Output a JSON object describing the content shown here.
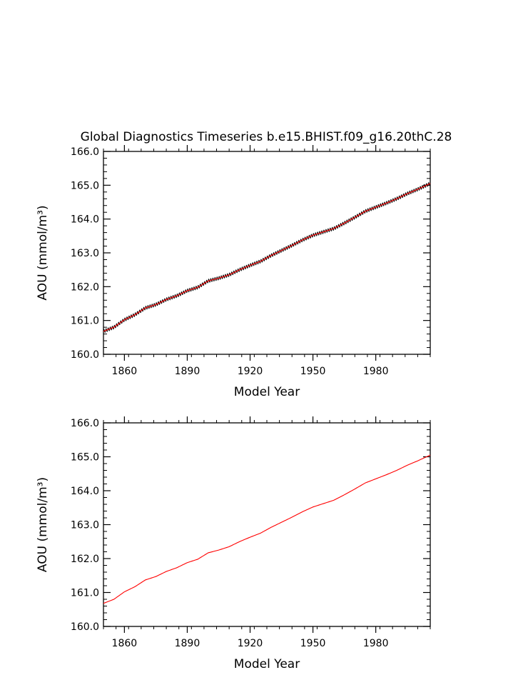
{
  "title": "Global Diagnostics Timeseries b.e15.BHIST.f09_g16.20thC.28",
  "colors": {
    "background": "#ffffff",
    "axes": "#000000",
    "monthly": "#000000",
    "smoothed": "#ff0000"
  },
  "chart_data": [
    {
      "type": "line",
      "title": "Global Diagnostics Timeseries b.e15.BHIST.f09_g16.20thC.28",
      "xlabel": "Model Year",
      "ylabel": "AOU (mmol/m³)",
      "xlim": [
        1850,
        2006
      ],
      "ylim": [
        160.0,
        166.0
      ],
      "xticks": [
        1860,
        1890,
        1920,
        1950,
        1980
      ],
      "xtick_labels": [
        "1860",
        "1890",
        "1920",
        "1950",
        "1980"
      ],
      "yticks": [
        160.0,
        161.0,
        162.0,
        163.0,
        164.0,
        165.0,
        166.0
      ],
      "ytick_labels": [
        "160.0",
        "161.0",
        "162.0",
        "163.0",
        "164.0",
        "165.0",
        "166.0"
      ],
      "grid": false,
      "series": [
        {
          "color": "#000000",
          "style": "monthly, seasonal cycle amplitude ~0.05",
          "x": [
            1850,
            1855,
            1860,
            1865,
            1870,
            1875,
            1880,
            1885,
            1890,
            1895,
            1900,
            1905,
            1910,
            1915,
            1920,
            1925,
            1930,
            1935,
            1940,
            1945,
            1950,
            1955,
            1960,
            1965,
            1970,
            1975,
            1980,
            1985,
            1990,
            1995,
            2000,
            2006
          ],
          "y": [
            160.68,
            160.8,
            161.02,
            161.17,
            161.37,
            161.47,
            161.62,
            161.73,
            161.88,
            161.98,
            162.17,
            162.25,
            162.35,
            162.5,
            162.63,
            162.75,
            162.92,
            163.07,
            163.22,
            163.38,
            163.52,
            163.62,
            163.72,
            163.88,
            164.05,
            164.23,
            164.35,
            164.47,
            164.6,
            164.75,
            164.88,
            165.05
          ]
        },
        {
          "color": "#ff0000",
          "style": "annual mean",
          "x": [
            1850,
            1855,
            1860,
            1865,
            1870,
            1875,
            1880,
            1885,
            1890,
            1895,
            1900,
            1905,
            1910,
            1915,
            1920,
            1925,
            1930,
            1935,
            1940,
            1945,
            1950,
            1955,
            1960,
            1965,
            1970,
            1975,
            1980,
            1985,
            1990,
            1995,
            2000,
            2006
          ],
          "y": [
            160.68,
            160.8,
            161.02,
            161.17,
            161.37,
            161.47,
            161.62,
            161.73,
            161.88,
            161.98,
            162.17,
            162.25,
            162.35,
            162.5,
            162.63,
            162.75,
            162.92,
            163.07,
            163.22,
            163.38,
            163.52,
            163.62,
            163.72,
            163.88,
            164.05,
            164.23,
            164.35,
            164.47,
            164.6,
            164.75,
            164.88,
            165.05
          ]
        }
      ]
    },
    {
      "type": "line",
      "title": "",
      "xlabel": "Model Year",
      "ylabel": "AOU (mmol/m³)",
      "xlim": [
        1850,
        2006
      ],
      "ylim": [
        160.0,
        166.0
      ],
      "xticks": [
        1860,
        1890,
        1920,
        1950,
        1980
      ],
      "xtick_labels": [
        "1860",
        "1890",
        "1920",
        "1950",
        "1980"
      ],
      "yticks": [
        160.0,
        161.0,
        162.0,
        163.0,
        164.0,
        165.0,
        166.0
      ],
      "ytick_labels": [
        "160.0",
        "161.0",
        "162.0",
        "163.0",
        "164.0",
        "165.0",
        "166.0"
      ],
      "grid": false,
      "series": [
        {
          "color": "#ff0000",
          "style": "annual mean",
          "x": [
            1850,
            1855,
            1860,
            1865,
            1870,
            1875,
            1880,
            1885,
            1890,
            1895,
            1900,
            1905,
            1910,
            1915,
            1920,
            1925,
            1930,
            1935,
            1940,
            1945,
            1950,
            1955,
            1960,
            1965,
            1970,
            1975,
            1980,
            1985,
            1990,
            1995,
            2000,
            2006
          ],
          "y": [
            160.68,
            160.8,
            161.02,
            161.17,
            161.37,
            161.47,
            161.62,
            161.73,
            161.88,
            161.98,
            162.17,
            162.25,
            162.35,
            162.5,
            162.63,
            162.75,
            162.92,
            163.07,
            163.22,
            163.38,
            163.52,
            163.62,
            163.72,
            163.88,
            164.05,
            164.23,
            164.35,
            164.47,
            164.6,
            164.75,
            164.88,
            165.05
          ]
        }
      ]
    }
  ]
}
